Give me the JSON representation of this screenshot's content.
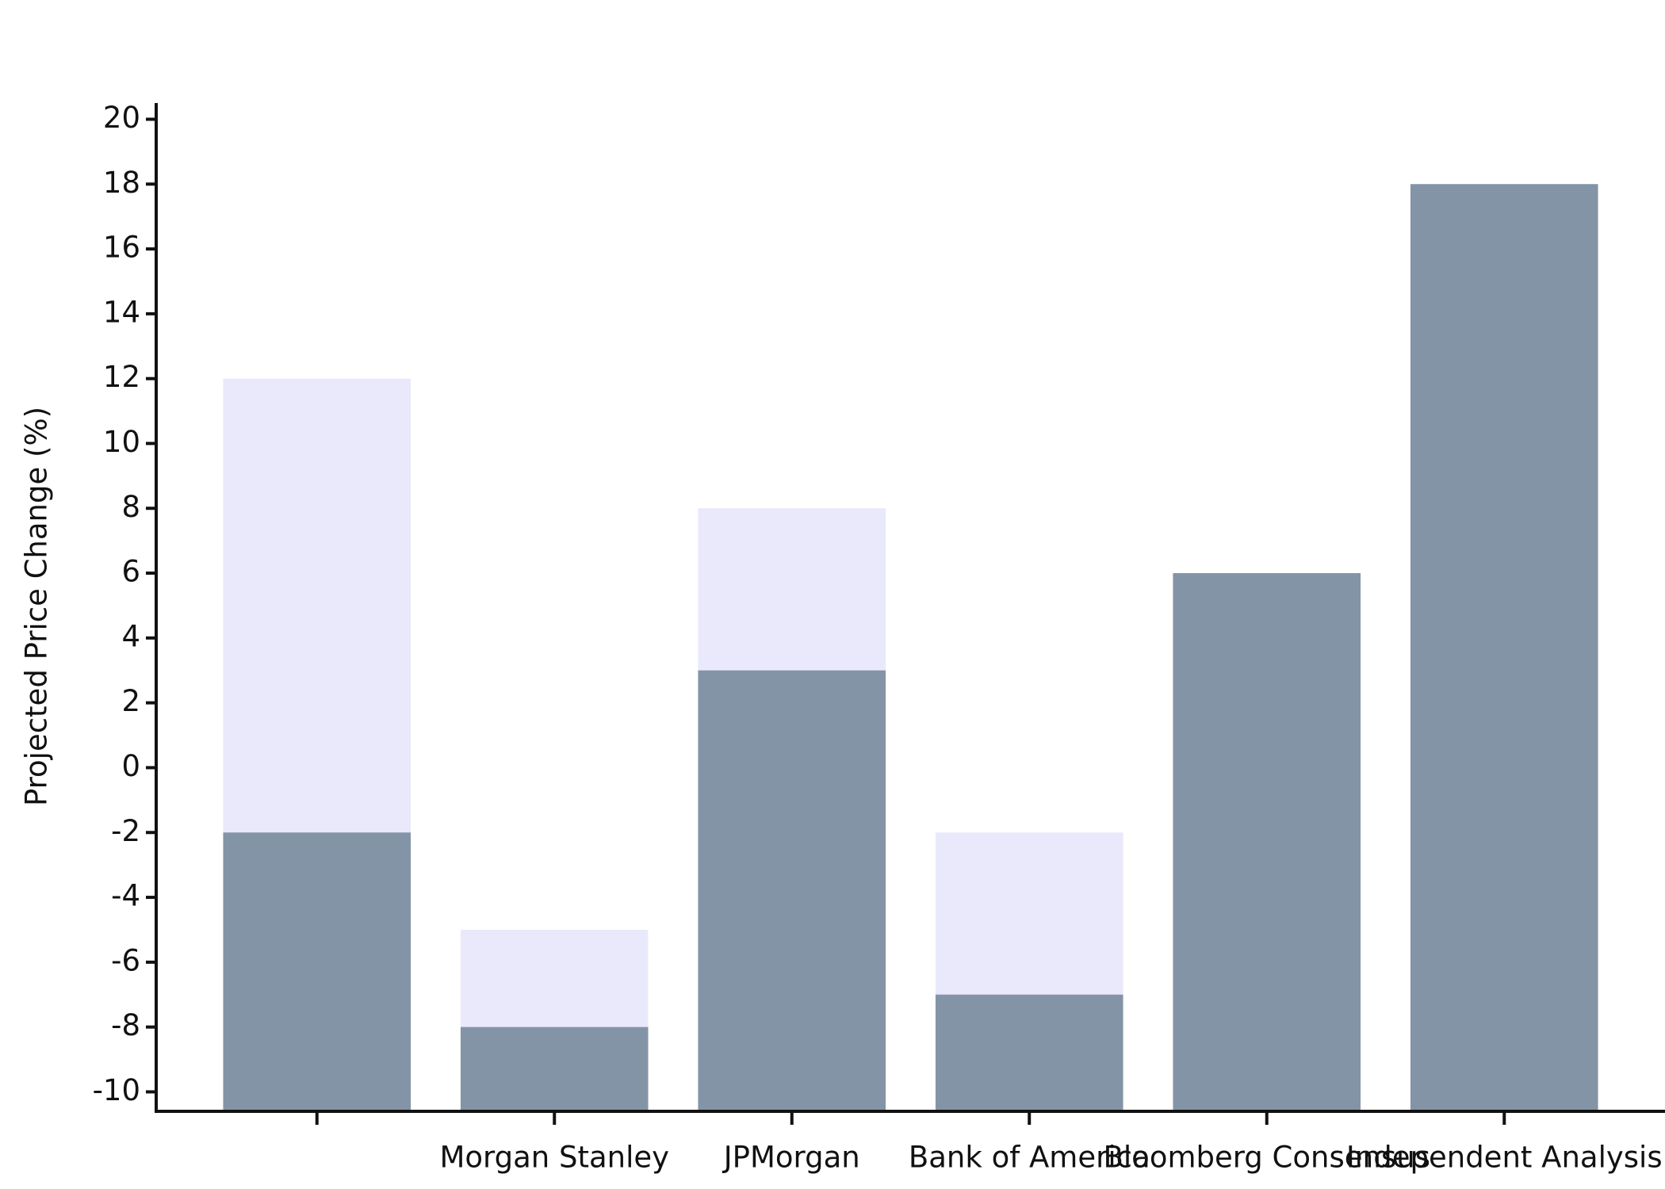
{
  "chart_data": {
    "type": "bar",
    "y_label": "Projected Price Change (%)",
    "categories": [
      null,
      "Morgan Stanley",
      "JPMorgan",
      "Bank of America",
      "Bloomberg Consensus",
      "Independent Analysis"
    ],
    "series": [
      {
        "color": "#e9e9fb",
        "values": [
          12,
          -5,
          8,
          -2,
          6,
          18
        ]
      },
      {
        "color": "#8494a7",
        "values": [
          -2,
          -8,
          3,
          -7,
          6,
          18
        ]
      }
    ],
    "ylim": [
      -10.6,
      20.5
    ],
    "yticks": [
      -10,
      -8,
      -6,
      -4,
      -2,
      0,
      2,
      4,
      6,
      8,
      10,
      12,
      14,
      16,
      18,
      20
    ],
    "grid": false
  }
}
